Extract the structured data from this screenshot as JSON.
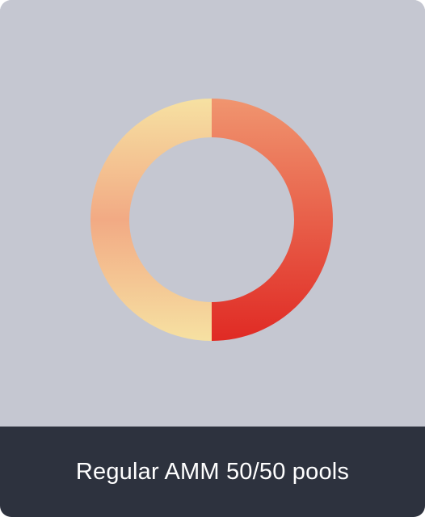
{
  "caption": "Regular AMM 50/50 pools",
  "colors": {
    "card_background": "#c5c7d1",
    "caption_background": "#2d323e",
    "caption_text": "#ffffff",
    "right_half_top": "#f0956f",
    "right_half_bottom": "#e02a24",
    "left_half_top": "#f6e1a2",
    "left_half_middle": "#f2aa84",
    "left_half_bottom": "#f6e1a2"
  },
  "chart_data": {
    "type": "pie",
    "categories": [
      "",
      ""
    ],
    "values": [
      50,
      50
    ],
    "title": ""
  }
}
